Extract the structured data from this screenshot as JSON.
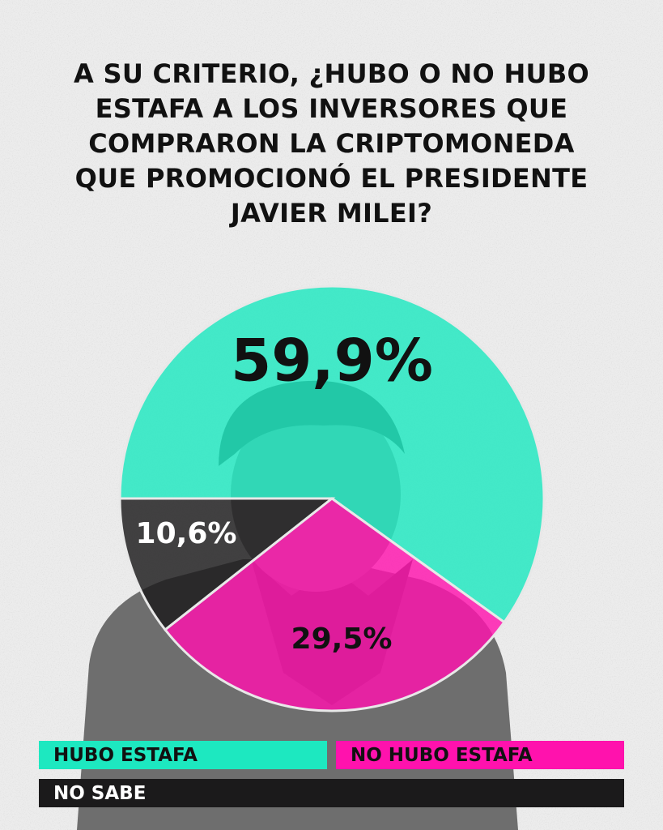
{
  "title": [
    "A SU CRITERIO, ¿HUBO O NO HUBO",
    "ESTAFA A LOS INVERSORES QUE",
    "COMPRARON LA CRIPTOMONEDA",
    "QUE PROMOCIONÓ EL PRESIDENTE",
    "JAVIER MILEI?"
  ],
  "chart_data": {
    "type": "pie",
    "title": "A SU CRITERIO, ¿HUBO O NO HUBO ESTAFA A LOS INVERSORES QUE COMPRARON LA CRIPTOMONEDA QUE PROMOCIONÓ EL PRESIDENTE JAVIER MILEI?",
    "slices": [
      {
        "label": "HUBO ESTAFA",
        "value": 59.9,
        "display": "59,9%",
        "color": "#1de8c0"
      },
      {
        "label": "NO HUBO ESTAFA",
        "value": 29.5,
        "display": "29,5%",
        "color": "#ff12ad"
      },
      {
        "label": "NO SABE",
        "value": 10.6,
        "display": "10,6%",
        "color": "#1b1a1b"
      }
    ],
    "legend": "bottom"
  },
  "legend": {
    "hubo": "HUBO ESTAFA",
    "no_hubo": "NO HUBO ESTAFA",
    "no_sabe": "NO SABE"
  },
  "colors": {
    "hubo": "#1de8c0",
    "no_hubo": "#ff12ad",
    "no_sabe": "#1b1a1b",
    "background": "#ececec"
  }
}
